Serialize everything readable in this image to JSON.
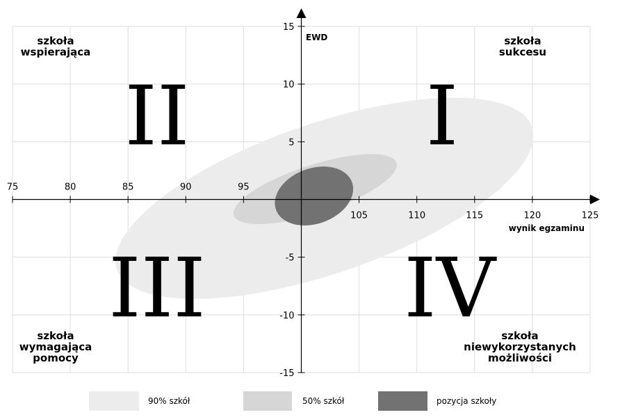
{
  "chart_data": {
    "type": "scatter",
    "xlabel": "wynik egzaminu",
    "ylabel": "EWD",
    "xlim": [
      75,
      125
    ],
    "ylim": [
      -15,
      15
    ],
    "x_ticks": [
      75,
      80,
      85,
      90,
      95,
      105,
      110,
      115,
      120,
      125
    ],
    "y_ticks": [
      15,
      10,
      5,
      -5,
      -10,
      -15
    ],
    "grid": true,
    "quadrant_labels": [
      {
        "numeral": "I",
        "text": "szkoła\nsukcesu"
      },
      {
        "numeral": "II",
        "text": "szkoła\nwspierająca"
      },
      {
        "numeral": "III",
        "text": "szkoła\nwymagająca\npomocy"
      },
      {
        "numeral": "IV",
        "text": "szkoła\nniewykorzystanych\nmożliwości"
      }
    ],
    "ellipses": [
      {
        "name": "90% szkół",
        "cx": 102,
        "cy": 0.1,
        "rx": 19,
        "ry": 6.5,
        "angle_deg": -19,
        "color": "#ececec"
      },
      {
        "name": "50% szkół",
        "cx": 101.2,
        "cy": 0.9,
        "rx": 7.4,
        "ry": 2.1,
        "angle_deg": -18,
        "color": "#d6d6d6"
      },
      {
        "name": "pozycja szkoły",
        "cx": 101.1,
        "cy": 0.3,
        "rx": 3.5,
        "ry": 2.4,
        "angle_deg": -20,
        "color": "#727272"
      }
    ],
    "legend": [
      {
        "label": "90% szkół",
        "color": "#ececec"
      },
      {
        "label": "50% szkół",
        "color": "#d6d6d6"
      },
      {
        "label": "pozycja szkoły",
        "color": "#727272"
      }
    ],
    "legend_position": "bottom"
  }
}
